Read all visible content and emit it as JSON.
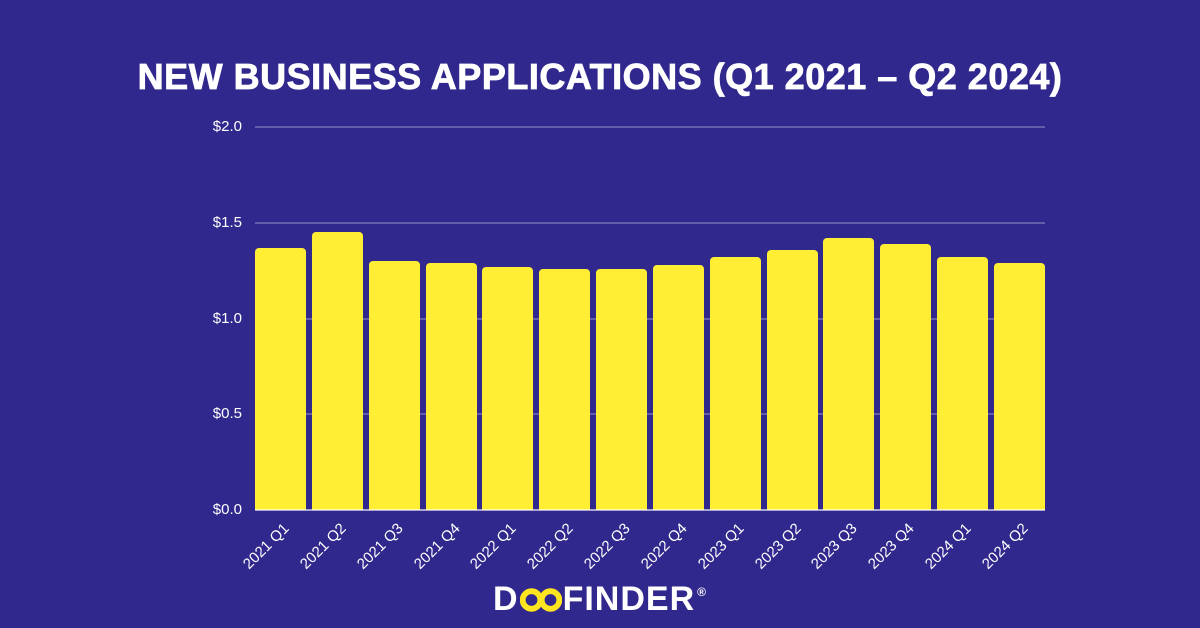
{
  "page": {
    "background_color": "#31288D",
    "title": "NEW BUSINESS APPLICATIONS (Q1 2021 – Q2 2024)"
  },
  "chart_data": {
    "type": "bar",
    "title": "NEW BUSINESS APPLICATIONS (Q1 2021 – Q2 2024)",
    "categories": [
      "2021 Q1",
      "2021 Q2",
      "2021 Q3",
      "2021 Q4",
      "2022 Q1",
      "2022 Q2",
      "2022 Q3",
      "2022 Q4",
      "2023 Q1",
      "2023 Q2",
      "2023 Q3",
      "2023 Q4",
      "2024 Q1",
      "2024 Q2"
    ],
    "values": [
      1.37,
      1.45,
      1.3,
      1.29,
      1.27,
      1.26,
      1.26,
      1.28,
      1.32,
      1.36,
      1.42,
      1.39,
      1.32,
      1.29
    ],
    "y_ticks": [
      {
        "label": "$0.0",
        "value": 0.0
      },
      {
        "label": "$0.5",
        "value": 0.5
      },
      {
        "label": "$1.0",
        "value": 1.0
      },
      {
        "label": "$1.5",
        "value": 1.5
      },
      {
        "label": "$2.0",
        "value": 2.0
      }
    ],
    "ylim": [
      0,
      2.0
    ],
    "xlabel": "",
    "ylabel": "",
    "grid": true,
    "legend": "none",
    "bar_color": "#FFEE33",
    "gridline_color": "rgba(255,255,255,0.25)",
    "axis_text_color": "#FFFFFF"
  },
  "footer": {
    "logo_text_d": "D",
    "logo_text_rest": "FINDER",
    "logo_registered": "®",
    "logo_ring_color": "#FFE51F"
  }
}
